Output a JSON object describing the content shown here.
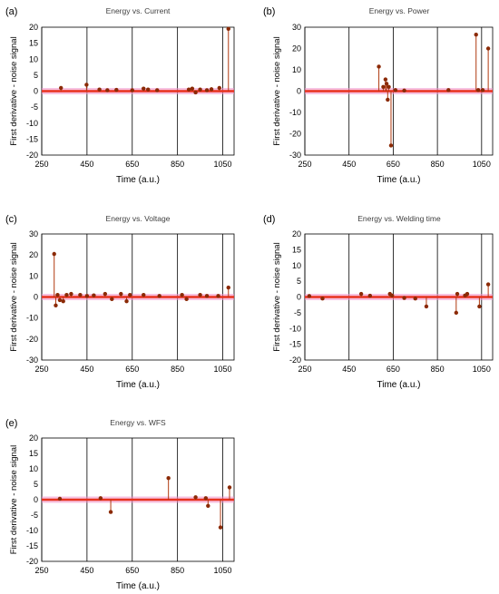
{
  "figure": {
    "colors": {
      "stem": "#b03a10",
      "marker": "#8b2a06",
      "baseline": "#e8321e",
      "glow": "#f090c8",
      "grid": "#000000"
    }
  },
  "chart_data": [
    {
      "type": "scatter",
      "panel_label": "(a)",
      "title": "Energy vs. Current",
      "xlabel": "Time (a.u.)",
      "ylabel": "First derivative - noise signal",
      "xlim": [
        250,
        1100
      ],
      "xticks": [
        "250",
        "450",
        "650",
        "850",
        "1050"
      ],
      "xtick_values": [
        250,
        450,
        650,
        850,
        1050
      ],
      "ylim": [
        -20,
        20
      ],
      "yticks": [
        "-20",
        "-15",
        "-10",
        "-5",
        "0",
        "5",
        "10",
        "15",
        "20"
      ],
      "ytick_values": [
        -20,
        -15,
        -10,
        -5,
        0,
        5,
        10,
        15,
        20
      ],
      "grid": "vertical",
      "series": [
        {
          "x": [
            335,
            448,
            505,
            540,
            580,
            650,
            700,
            720,
            760,
            900,
            915,
            930,
            950,
            980,
            1000,
            1035,
            1075
          ],
          "y": [
            1,
            2,
            0.5,
            0.3,
            0.4,
            0.3,
            0.8,
            0.5,
            0.3,
            0.5,
            0.8,
            -0.4,
            0.5,
            0.3,
            0.6,
            1,
            19.5
          ]
        }
      ]
    },
    {
      "type": "scatter",
      "panel_label": "(b)",
      "title": "Energy vs. Power",
      "xlabel": "Time (a.u.)",
      "ylabel": "First derivative - noise signal",
      "xlim": [
        250,
        1100
      ],
      "xticks": [
        "250",
        "450",
        "650",
        "850",
        "1050"
      ],
      "xtick_values": [
        250,
        450,
        650,
        850,
        1050
      ],
      "ylim": [
        -30,
        30
      ],
      "yticks": [
        "-30",
        "-20",
        "-10",
        "0",
        "10",
        "20",
        "30"
      ],
      "ytick_values": [
        -30,
        -20,
        -10,
        0,
        10,
        20,
        30
      ],
      "grid": "vertical",
      "series": [
        {
          "x": [
            585,
            605,
            615,
            620,
            625,
            630,
            640,
            660,
            700,
            900,
            1025,
            1035,
            1055,
            1080
          ],
          "y": [
            11.5,
            2,
            5.5,
            3.5,
            -4,
            2,
            -25.5,
            0.5,
            0.3,
            0.5,
            26.5,
            0.5,
            0.5,
            20
          ]
        }
      ]
    },
    {
      "type": "scatter",
      "panel_label": "(c)",
      "title": "Energy vs. Voltage",
      "xlabel": "Time (a.u.)",
      "ylabel": "First derivative - noise signal",
      "xlim": [
        250,
        1100
      ],
      "xticks": [
        "250",
        "450",
        "650",
        "850",
        "1050"
      ],
      "xtick_values": [
        250,
        450,
        650,
        850,
        1050
      ],
      "ylim": [
        -30,
        30
      ],
      "yticks": [
        "-30",
        "-20",
        "-10",
        "0",
        "10",
        "20",
        "30"
      ],
      "ytick_values": [
        -30,
        -20,
        -10,
        0,
        10,
        20,
        30
      ],
      "grid": "vertical",
      "series": [
        {
          "x": [
            305,
            312,
            320,
            330,
            345,
            360,
            380,
            420,
            450,
            480,
            530,
            560,
            600,
            625,
            640,
            700,
            770,
            870,
            890,
            950,
            980,
            1030,
            1075
          ],
          "y": [
            20.5,
            -4,
            1,
            -1.5,
            -2,
            1,
            1.5,
            1,
            0.5,
            0.8,
            1.5,
            -1,
            1.5,
            -2,
            1,
            1,
            0.5,
            1,
            -1,
            1,
            0.5,
            0.5,
            4.5
          ]
        }
      ]
    },
    {
      "type": "scatter",
      "panel_label": "(d)",
      "title": "Energy vs. Welding time",
      "xlabel": "Time (a.u.)",
      "ylabel": "First derivative - noise signal",
      "xlim": [
        250,
        1100
      ],
      "xticks": [
        "250",
        "450",
        "650",
        "850",
        "1050"
      ],
      "xtick_values": [
        250,
        450,
        650,
        850,
        1050
      ],
      "ylim": [
        -20,
        20
      ],
      "yticks": [
        "-20",
        "-15",
        "-10",
        "-5",
        "0",
        "5",
        "10",
        "15",
        "20"
      ],
      "ytick_values": [
        -20,
        -15,
        -10,
        -5,
        0,
        5,
        10,
        15,
        20
      ],
      "grid": "vertical",
      "series": [
        {
          "x": [
            270,
            330,
            505,
            545,
            635,
            645,
            700,
            750,
            800,
            935,
            940,
            975,
            985,
            1040,
            1080
          ],
          "y": [
            0.3,
            -0.5,
            1,
            0.4,
            1,
            0.5,
            -0.3,
            -0.5,
            -3,
            -5,
            1,
            0.5,
            1,
            -3,
            4
          ]
        }
      ]
    },
    {
      "type": "scatter",
      "panel_label": "(e)",
      "title": "Energy vs. WFS",
      "xlabel": "Time (a.u.)",
      "ylabel": "First derivative - noise signal",
      "xlim": [
        250,
        1100
      ],
      "xticks": [
        "250",
        "450",
        "650",
        "850",
        "1050"
      ],
      "xtick_values": [
        250,
        450,
        650,
        850,
        1050
      ],
      "ylim": [
        -20,
        20
      ],
      "yticks": [
        "-20",
        "-15",
        "-10",
        "-5",
        "0",
        "5",
        "10",
        "15",
        "20"
      ],
      "ytick_values": [
        -20,
        -15,
        -10,
        -5,
        0,
        5,
        10,
        15,
        20
      ],
      "grid": "vertical",
      "series": [
        {
          "x": [
            330,
            510,
            555,
            810,
            930,
            975,
            985,
            1040,
            1080
          ],
          "y": [
            0.3,
            0.5,
            -4,
            7,
            0.8,
            0.5,
            -2,
            -9,
            4
          ]
        }
      ]
    }
  ]
}
